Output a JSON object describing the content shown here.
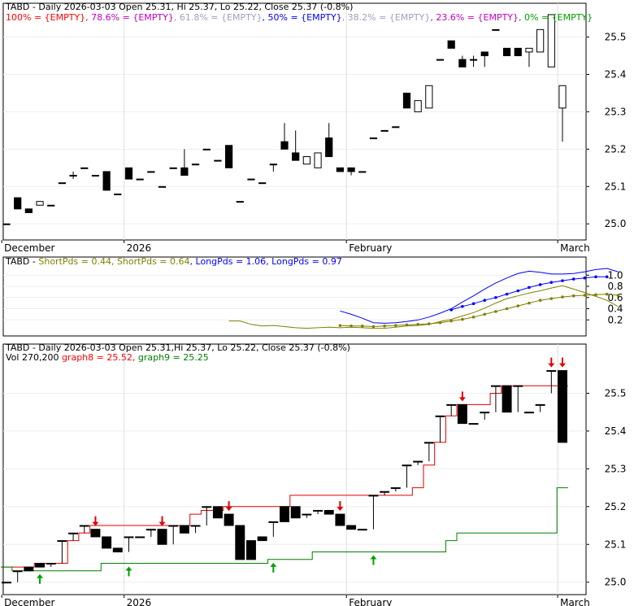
{
  "chart_data": [
    {
      "type": "candlestick",
      "title": "TABD - Daily 2026-03-03 Open 25.31, Hi 25.37, Lo 25.22, Close 25.37 (-0.8%)",
      "fib_legend": [
        {
          "text": "100% = {EMPTY}",
          "color": "#ff0000"
        },
        {
          "text": "78.6% = {EMPTY}",
          "color": "#c000c0"
        },
        {
          "text": "61.8% = {EMPTY}",
          "color": "#a0a0c0"
        },
        {
          "text": "50% = {EMPTY}",
          "color": "#0000ff"
        },
        {
          "text": "38.2% = {EMPTY}",
          "color": "#a0a0c0"
        },
        {
          "text": "23.6% = {EMPTY}",
          "color": "#c000c0"
        },
        {
          "text": "0% = {EMPTY}",
          "color": "#00a000"
        }
      ],
      "y_ticks": [
        "25.0",
        "25.1",
        "25.2",
        "25.3",
        "25.4",
        "25.5"
      ],
      "ylim": [
        24.97,
        25.56
      ],
      "x_labels": [
        {
          "text": "December",
          "index": 0
        },
        {
          "text": "2026",
          "index": 11
        },
        {
          "text": "February",
          "index": 31
        },
        {
          "text": "March",
          "index": 50
        }
      ],
      "candles": [
        [
          25.0,
          25.0,
          25.0,
          25.0
        ],
        [
          25.07,
          25.07,
          25.04,
          25.04
        ],
        [
          25.04,
          25.04,
          25.03,
          25.03
        ],
        [
          25.05,
          25.06,
          25.05,
          25.06
        ],
        [
          25.05,
          25.05,
          25.05,
          25.05
        ],
        [
          25.11,
          25.11,
          25.11,
          25.11
        ],
        [
          25.13,
          25.14,
          25.12,
          25.13
        ],
        [
          25.15,
          25.15,
          25.15,
          25.15
        ],
        [
          25.13,
          25.13,
          25.13,
          25.13
        ],
        [
          25.14,
          25.14,
          25.09,
          25.09
        ],
        [
          25.08,
          25.08,
          25.08,
          25.08
        ],
        [
          25.15,
          25.15,
          25.12,
          25.12
        ],
        [
          25.12,
          25.12,
          25.12,
          25.12
        ],
        [
          25.14,
          25.14,
          25.14,
          25.14
        ],
        [
          25.1,
          25.1,
          25.1,
          25.1
        ],
        [
          25.15,
          25.15,
          25.15,
          25.15
        ],
        [
          25.15,
          25.2,
          25.13,
          25.13
        ],
        [
          25.16,
          25.16,
          25.16,
          25.16
        ],
        [
          25.2,
          25.2,
          25.2,
          25.2
        ],
        [
          25.17,
          25.17,
          25.17,
          25.17
        ],
        [
          25.21,
          25.21,
          25.15,
          25.15
        ],
        [
          25.06,
          25.06,
          25.06,
          25.06
        ],
        [
          25.12,
          25.12,
          25.12,
          25.12
        ],
        [
          25.11,
          25.11,
          25.11,
          25.11
        ],
        [
          25.16,
          25.16,
          25.14,
          25.16
        ],
        [
          25.22,
          25.27,
          25.2,
          25.2
        ],
        [
          25.19,
          25.25,
          25.17,
          25.17
        ],
        [
          25.16,
          25.18,
          25.16,
          25.18
        ],
        [
          25.15,
          25.19,
          25.15,
          25.19
        ],
        [
          25.23,
          25.27,
          25.18,
          25.18
        ],
        [
          25.15,
          25.15,
          25.14,
          25.14
        ],
        [
          25.15,
          25.15,
          25.13,
          25.14
        ],
        [
          25.14,
          25.14,
          25.14,
          25.14
        ],
        [
          25.23,
          25.23,
          25.23,
          25.23
        ],
        [
          25.25,
          25.25,
          25.25,
          25.25
        ],
        [
          25.26,
          25.26,
          25.26,
          25.26
        ],
        [
          25.35,
          25.35,
          25.31,
          25.31
        ],
        [
          25.3,
          25.33,
          25.3,
          25.33
        ],
        [
          25.31,
          25.37,
          25.31,
          25.37
        ],
        [
          25.44,
          25.44,
          25.44,
          25.44
        ],
        [
          25.49,
          25.49,
          25.47,
          25.47
        ],
        [
          25.44,
          25.45,
          25.42,
          25.42
        ],
        [
          25.44,
          25.45,
          25.42,
          25.44
        ],
        [
          25.46,
          25.46,
          25.42,
          25.45
        ],
        [
          25.52,
          25.52,
          25.52,
          25.52
        ],
        [
          25.47,
          25.47,
          25.45,
          25.45
        ],
        [
          25.47,
          25.47,
          25.45,
          25.45
        ],
        [
          25.46,
          25.47,
          25.42,
          25.47
        ],
        [
          25.46,
          25.52,
          25.46,
          25.52
        ],
        [
          25.42,
          25.56,
          25.42,
          25.56
        ],
        [
          25.31,
          25.37,
          25.22,
          25.37
        ]
      ]
    },
    {
      "type": "line",
      "title": "TABD",
      "legend": [
        {
          "text": "ShortPds = 0.44",
          "color": "#808000"
        },
        {
          "text": "ShortPds = 0.64",
          "color": "#808000"
        },
        {
          "text": "LongPds = 1.06",
          "color": "#0000ff"
        },
        {
          "text": "LongPds = 0.97",
          "color": "#0000ff"
        }
      ],
      "y_ticks": [
        "0.2",
        "0.4",
        "0.6",
        "0.8",
        "1.0"
      ],
      "ylim": [
        0.0,
        1.12
      ],
      "series": [
        {
          "color": "#808000",
          "marker": false,
          "start": 20,
          "values": [
            0.18,
            0.18,
            0.12,
            0.09,
            0.1,
            0.08,
            0.06,
            0.05,
            0.06,
            0.07,
            0.06,
            0.07,
            0.06,
            0.05,
            0.05,
            0.07,
            0.09,
            0.1,
            0.12,
            0.17,
            0.21,
            0.27,
            0.33,
            0.41,
            0.5,
            0.58,
            0.63,
            0.68,
            0.72,
            0.77,
            0.81,
            0.75,
            0.69,
            0.62,
            0.55,
            0.44
          ]
        },
        {
          "color": "#808000",
          "marker": true,
          "start": 30,
          "values": [
            0.1,
            0.09,
            0.09,
            0.08,
            0.09,
            0.1,
            0.11,
            0.12,
            0.13,
            0.15,
            0.18,
            0.21,
            0.25,
            0.3,
            0.35,
            0.4,
            0.45,
            0.5,
            0.55,
            0.58,
            0.61,
            0.63,
            0.64,
            0.65,
            0.66,
            0.64
          ]
        },
        {
          "color": "#0000ff",
          "marker": false,
          "start": 30,
          "values": [
            0.36,
            0.3,
            0.23,
            0.15,
            0.14,
            0.15,
            0.17,
            0.2,
            0.25,
            0.32,
            0.4,
            0.52,
            0.63,
            0.75,
            0.86,
            0.95,
            1.03,
            1.07,
            1.05,
            1.02,
            1.02,
            1.03,
            1.06,
            1.1,
            1.12,
            1.06
          ]
        },
        {
          "color": "#0000ff",
          "marker": true,
          "start": 40,
          "values": [
            0.38,
            0.44,
            0.49,
            0.55,
            0.6,
            0.66,
            0.72,
            0.78,
            0.83,
            0.87,
            0.9,
            0.93,
            0.95,
            0.97,
            0.97
          ]
        }
      ],
      "x_labels": []
    },
    {
      "type": "candlestick",
      "title": "TABD - Daily 2026-03-03 Open 25.31,Hi 25.37, Lo 25.22, Close 25.37 (-0.8%)",
      "legend_line2": [
        {
          "text": "Vol 270,200",
          "color": "#000000"
        },
        {
          "text": "graph8 = 25.52,",
          "color": "#ff0000"
        },
        {
          "text": "graph9 = 25.25",
          "color": "#008000"
        }
      ],
      "y_ticks": [
        "25.0",
        "25.1",
        "25.2",
        "25.3",
        "25.4",
        "25.5"
      ],
      "ylim": [
        24.98,
        25.6
      ],
      "x_labels": [
        {
          "text": "December",
          "index": 0
        },
        {
          "text": "2026",
          "index": 11
        },
        {
          "text": "February",
          "index": 31
        },
        {
          "text": "March",
          "index": 50
        }
      ],
      "candles": [
        [
          25.0,
          25.0,
          25.0,
          25.0
        ],
        [
          25.03,
          25.03,
          25.0,
          25.03
        ],
        [
          25.04,
          25.04,
          25.03,
          25.03
        ],
        [
          25.05,
          25.05,
          25.04,
          25.04
        ],
        [
          25.05,
          25.05,
          25.04,
          25.05
        ],
        [
          25.11,
          25.11,
          25.05,
          25.11
        ],
        [
          25.13,
          25.13,
          25.11,
          25.13
        ],
        [
          25.15,
          25.15,
          25.13,
          25.15
        ],
        [
          25.14,
          25.14,
          25.12,
          25.12
        ],
        [
          25.12,
          25.12,
          25.09,
          25.09
        ],
        [
          25.09,
          25.09,
          25.08,
          25.08
        ],
        [
          25.12,
          25.12,
          25.08,
          25.12
        ],
        [
          25.12,
          25.12,
          25.12,
          25.12
        ],
        [
          25.14,
          25.14,
          25.12,
          25.14
        ],
        [
          25.14,
          25.14,
          25.1,
          25.1
        ],
        [
          25.15,
          25.15,
          25.1,
          25.15
        ],
        [
          25.15,
          25.15,
          25.13,
          25.13
        ],
        [
          25.15,
          25.15,
          25.13,
          25.15
        ],
        [
          25.2,
          25.2,
          25.15,
          25.2
        ],
        [
          25.2,
          25.2,
          25.17,
          25.17
        ],
        [
          25.18,
          25.18,
          25.15,
          25.15
        ],
        [
          25.15,
          25.15,
          25.06,
          25.06
        ],
        [
          25.11,
          25.11,
          25.06,
          25.06
        ],
        [
          25.12,
          25.12,
          25.11,
          25.11
        ],
        [
          25.16,
          25.16,
          25.12,
          25.16
        ],
        [
          25.2,
          25.2,
          25.16,
          25.16
        ],
        [
          25.2,
          25.2,
          25.17,
          25.17
        ],
        [
          25.18,
          25.18,
          25.17,
          25.18
        ],
        [
          25.19,
          25.19,
          25.18,
          25.19
        ],
        [
          25.19,
          25.19,
          25.18,
          25.18
        ],
        [
          25.18,
          25.18,
          25.15,
          25.15
        ],
        [
          25.15,
          25.15,
          25.14,
          25.14
        ],
        [
          25.14,
          25.14,
          25.14,
          25.14
        ],
        [
          25.23,
          25.23,
          25.14,
          25.23
        ],
        [
          25.24,
          25.24,
          25.23,
          25.24
        ],
        [
          25.25,
          25.25,
          25.24,
          25.25
        ],
        [
          25.31,
          25.31,
          25.25,
          25.31
        ],
        [
          25.32,
          25.32,
          25.31,
          25.32
        ],
        [
          25.37,
          25.37,
          25.32,
          25.37
        ],
        [
          25.44,
          25.44,
          25.37,
          25.44
        ],
        [
          25.47,
          25.47,
          25.44,
          25.47
        ],
        [
          25.47,
          25.47,
          25.42,
          25.42
        ],
        [
          25.42,
          25.42,
          25.42,
          25.42
        ],
        [
          25.45,
          25.45,
          25.43,
          25.45
        ],
        [
          25.52,
          25.52,
          25.45,
          25.52
        ],
        [
          25.52,
          25.52,
          25.45,
          25.45
        ],
        [
          25.52,
          25.52,
          25.45,
          25.52
        ],
        [
          25.45,
          25.45,
          25.45,
          25.45
        ],
        [
          25.47,
          25.47,
          25.45,
          25.47
        ],
        [
          25.56,
          25.56,
          25.5,
          25.56
        ],
        [
          25.56,
          25.56,
          25.37,
          25.37
        ]
      ],
      "graph8": [
        25.04,
        25.04,
        25.04,
        25.05,
        25.05,
        25.05,
        25.11,
        25.13,
        25.15,
        25.15,
        25.15,
        25.15,
        25.15,
        25.15,
        25.15,
        25.15,
        25.15,
        25.18,
        25.19,
        25.19,
        25.2,
        25.2,
        25.2,
        25.2,
        25.2,
        25.2,
        25.23,
        25.23,
        25.23,
        25.23,
        25.23,
        25.23,
        25.23,
        25.23,
        25.23,
        25.23,
        25.23,
        25.25,
        25.31,
        25.37,
        25.44,
        25.47,
        25.47,
        25.47,
        25.5,
        25.52,
        25.52,
        25.52,
        25.52,
        25.52,
        25.52
      ],
      "graph9": [
        25.04,
        25.03,
        25.03,
        25.03,
        25.03,
        25.03,
        25.03,
        25.03,
        25.03,
        25.05,
        25.05,
        25.05,
        25.05,
        25.05,
        25.05,
        25.05,
        25.05,
        25.05,
        25.05,
        25.05,
        25.05,
        25.05,
        25.05,
        25.05,
        25.06,
        25.06,
        25.06,
        25.06,
        25.08,
        25.08,
        25.08,
        25.08,
        25.08,
        25.08,
        25.08,
        25.08,
        25.08,
        25.08,
        25.08,
        25.08,
        25.11,
        25.13,
        25.13,
        25.13,
        25.13,
        25.13,
        25.13,
        25.13,
        25.13,
        25.13,
        25.25
      ],
      "down_arrows": [
        8,
        14,
        20,
        30,
        41,
        49,
        50
      ],
      "up_arrows": [
        3,
        11,
        24,
        33
      ]
    }
  ]
}
